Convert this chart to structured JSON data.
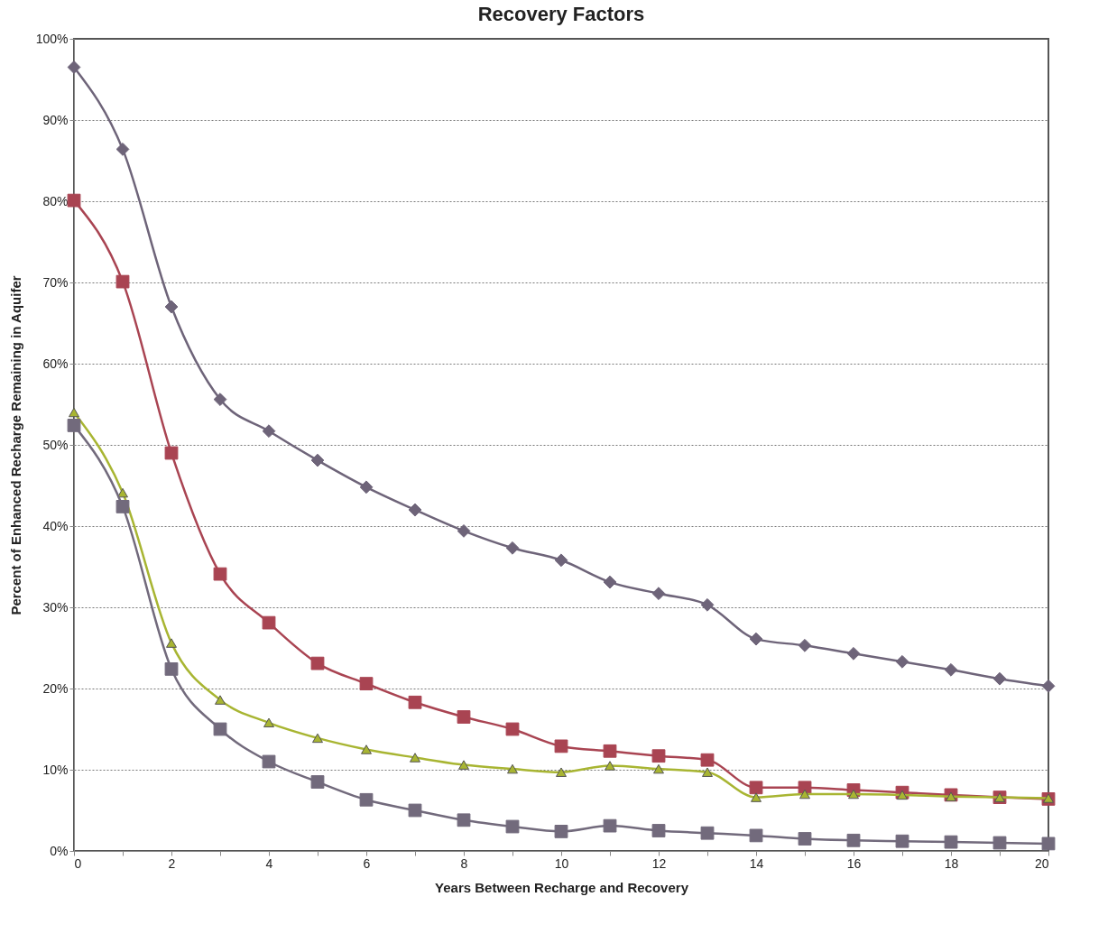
{
  "chart_data": {
    "type": "line",
    "title": "Recovery Factors",
    "xlabel": "Years Between Recharge and Recovery",
    "ylabel": "Percent of Enhanced Recharge Remaining in Aquifer",
    "x": [
      0,
      1,
      2,
      3,
      4,
      5,
      6,
      7,
      8,
      9,
      10,
      11,
      12,
      13,
      14,
      15,
      16,
      17,
      18,
      19,
      20
    ],
    "series": [
      {
        "color": "#6e6479",
        "marker": "diamond",
        "values": [
          96.5,
          86.4,
          67.0,
          55.6,
          51.7,
          48.1,
          44.8,
          42.0,
          39.4,
          37.3,
          35.8,
          33.1,
          31.7,
          30.3,
          26.1,
          25.3,
          24.3,
          23.3,
          22.3,
          21.2,
          20.3
        ]
      },
      {
        "color": "#a94452",
        "marker": "square",
        "values": [
          80.1,
          70.1,
          49.0,
          34.1,
          28.1,
          23.1,
          20.6,
          18.3,
          16.5,
          15.0,
          12.9,
          12.3,
          11.7,
          11.2,
          7.8,
          7.8,
          7.5,
          7.2,
          6.9,
          6.6,
          6.4
        ]
      },
      {
        "color": "#a8b532",
        "marker": "triangle",
        "values": [
          54.0,
          44.1,
          25.6,
          18.6,
          15.8,
          13.9,
          12.5,
          11.5,
          10.6,
          10.1,
          9.7,
          10.5,
          10.1,
          9.7,
          6.6,
          7.0,
          7.0,
          6.9,
          6.7,
          6.6,
          6.5
        ]
      },
      {
        "color": "#726a7c",
        "marker": "square",
        "values": [
          52.4,
          42.4,
          22.4,
          15.0,
          11.0,
          8.5,
          6.3,
          5.0,
          3.8,
          3.0,
          2.4,
          3.1,
          2.5,
          2.2,
          1.9,
          1.5,
          1.3,
          1.2,
          1.1,
          1.0,
          0.9
        ]
      }
    ],
    "xlim": [
      0,
      20
    ],
    "xticks": [
      0,
      {
        "value": 1,
        "label": null
      },
      2,
      {
        "value": 3,
        "label": null
      },
      4,
      {
        "value": 5,
        "label": null
      },
      6,
      {
        "value": 7,
        "label": null
      },
      8,
      {
        "value": 9,
        "label": null
      },
      10,
      {
        "value": 11,
        "label": null
      },
      12,
      {
        "value": 13,
        "label": null
      },
      14,
      {
        "value": 15,
        "label": null
      },
      16,
      {
        "value": 17,
        "label": null
      },
      18,
      {
        "value": 19,
        "label": null
      },
      20
    ],
    "ylim": [
      0,
      100
    ],
    "yticks": [
      {
        "value": 0,
        "label": "0%"
      },
      {
        "value": 10,
        "label": "10%"
      },
      {
        "value": 20,
        "label": "20%"
      },
      {
        "value": 30,
        "label": "30%"
      },
      {
        "value": 40,
        "label": "40%"
      },
      {
        "value": 50,
        "label": "50%"
      },
      {
        "value": 60,
        "label": "60%"
      },
      {
        "value": 70,
        "label": "70%"
      },
      {
        "value": 80,
        "label": "80%"
      },
      {
        "value": 90,
        "label": "90%"
      },
      {
        "value": 100,
        "label": "100%"
      }
    ],
    "grid": "y",
    "line_style": "solid"
  }
}
